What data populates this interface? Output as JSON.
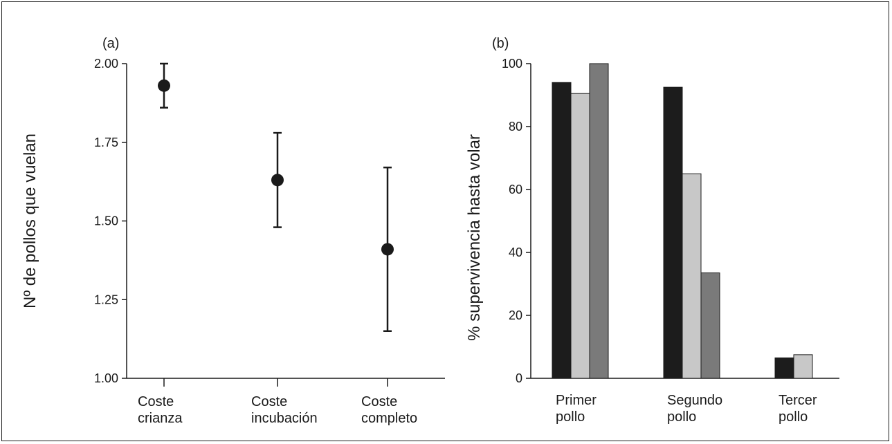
{
  "chart_data": [
    {
      "panel": "(a)",
      "type": "scatter",
      "ylabel": "Nº de pollos que vuelan",
      "ylim": [
        1.0,
        2.0
      ],
      "yticks": [
        "1.00",
        "1.25",
        "1.50",
        "1.75",
        "2.00"
      ],
      "categories": [
        [
          "Coste",
          "crianza"
        ],
        [
          "Coste",
          "incubación"
        ],
        [
          "Coste",
          "completo"
        ]
      ],
      "values": [
        1.93,
        1.63,
        1.41
      ],
      "error_low": [
        1.86,
        1.48,
        1.15
      ],
      "error_high": [
        2.0,
        1.78,
        1.67
      ],
      "color": "#1a1a1a"
    },
    {
      "panel": "(b)",
      "type": "bar",
      "ylabel": "% supervivencia hasta volar",
      "ylim": [
        0,
        100
      ],
      "yticks": [
        "0",
        "20",
        "40",
        "60",
        "80",
        "100"
      ],
      "categories": [
        [
          "Primer",
          "pollo"
        ],
        [
          "Segundo",
          "pollo"
        ],
        [
          "Tercer",
          "pollo"
        ]
      ],
      "series": [
        {
          "values": [
            94,
            92.5,
            6.5
          ],
          "color": "#1c1c1c"
        },
        {
          "values": [
            90.5,
            65,
            7.5
          ],
          "color": "#c8c8c8"
        },
        {
          "values": [
            100,
            33.5,
            null
          ],
          "color": "#7a7a7a"
        }
      ]
    }
  ]
}
